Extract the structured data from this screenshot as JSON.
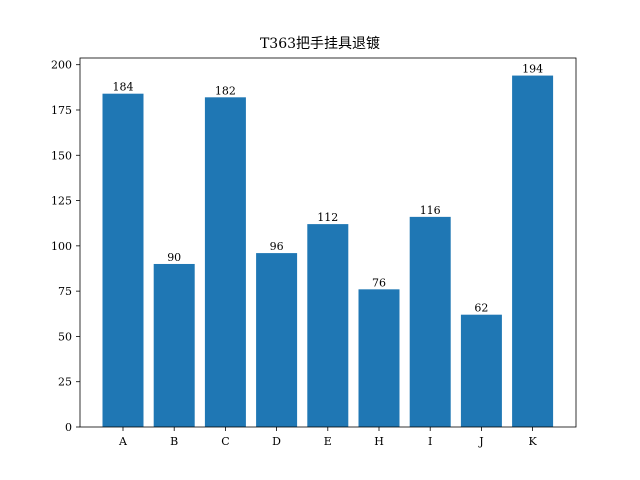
{
  "chart_data": {
    "type": "bar",
    "title": "T363把手挂具退镀",
    "xlabel": "",
    "ylabel": "",
    "categories": [
      "A",
      "B",
      "C",
      "D",
      "E",
      "H",
      "I",
      "J",
      "K"
    ],
    "values": [
      184,
      90,
      182,
      96,
      112,
      76,
      116,
      62,
      194
    ],
    "ylim": [
      0,
      203.7
    ],
    "yticks": [
      0,
      25,
      50,
      75,
      100,
      125,
      150,
      175,
      200
    ],
    "bar_color": "#1f77b4",
    "grid": false,
    "legend": null,
    "data_labels": true
  }
}
